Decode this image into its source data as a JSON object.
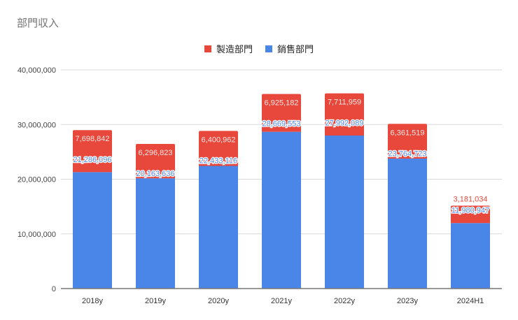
{
  "header": {
    "title": "部門収入"
  },
  "legend": [
    {
      "label": "製造部門",
      "color": "#e8473b"
    },
    {
      "label": "銷售部門",
      "color": "#4a86e8"
    }
  ],
  "chart_data": {
    "type": "bar",
    "stacked": true,
    "title": "部門収入",
    "xlabel": "",
    "ylabel": "",
    "ylim": [
      0,
      40000000
    ],
    "yticks": [
      "0",
      "10,000,000",
      "20,000,000",
      "30,000,000",
      "40,000,000"
    ],
    "categories": [
      "2018y",
      "2019y",
      "2020y",
      "2021y",
      "2022y",
      "2023y",
      "2024H1"
    ],
    "series": [
      {
        "name": "銷售部門",
        "color": "#4a86e8",
        "values": [
          21286096,
          20163636,
          22433116,
          28669553,
          27992089,
          23764723,
          11980947
        ],
        "labels": [
          "21,286,096",
          "20,163,636",
          "22,433,116",
          "28,669,553",
          "27,992,089",
          "23,764,723",
          "11,980,947"
        ]
      },
      {
        "name": "製造部門",
        "color": "#e8473b",
        "values": [
          7698842,
          6296823,
          6400962,
          6925182,
          7711959,
          6361519,
          3181034
        ],
        "labels": [
          "7,698,842",
          "6,296,823",
          "6,400,962",
          "6,925,182",
          "7,711,959",
          "6,361,519",
          "3,181,034"
        ]
      }
    ],
    "grid": true,
    "legend_position": "top"
  }
}
